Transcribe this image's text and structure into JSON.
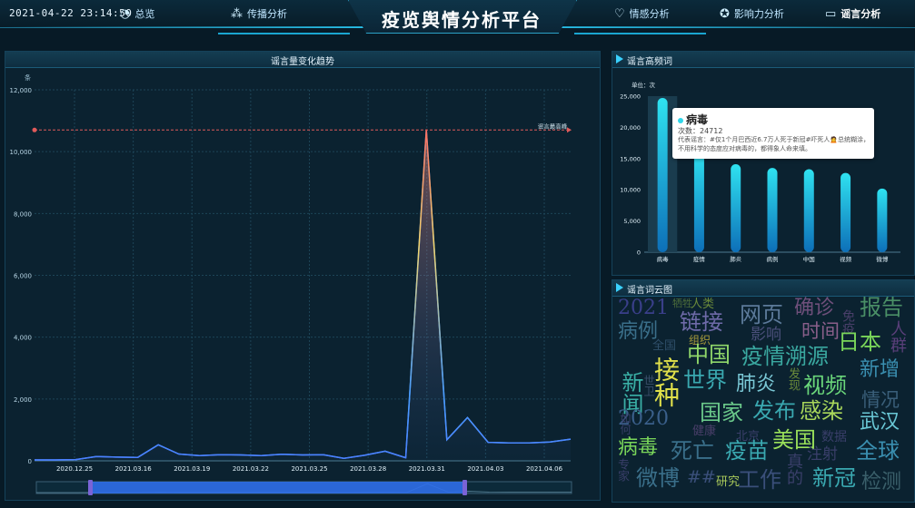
{
  "header": {
    "datetime": "2021-04-22 23:14:50",
    "title": "疫览舆情分析平台",
    "nav": [
      {
        "label": "总览",
        "icon": "gauge-icon"
      },
      {
        "label": "传播分析",
        "icon": "network-icon"
      },
      {
        "label": "情感分析",
        "icon": "heart-icon"
      },
      {
        "label": "影响力分析",
        "icon": "star-icon"
      },
      {
        "label": "谣言分析",
        "icon": "chat-icon"
      }
    ]
  },
  "trend": {
    "panel_title": "谣言量变化趋势",
    "markline_label": "谣言最高峰",
    "chart_data": {
      "type": "line",
      "title": "谣言量变化趋势",
      "ylabel": "条",
      "ylim": [
        0,
        12000
      ],
      "yticks": [
        "0",
        "2,000",
        "4,000",
        "6,000",
        "8,000",
        "10,000",
        "12,000"
      ],
      "x_tick_labels": [
        "2020.12.25",
        "2021.03.16",
        "2021.03.19",
        "2021.03.22",
        "2021.03.25",
        "2021.03.28",
        "2021.03.31",
        "2021.04.03",
        "2021.04.06"
      ],
      "series": [
        {
          "name": "谣言量",
          "values": [
            30,
            30,
            40,
            140,
            120,
            110,
            520,
            220,
            170,
            200,
            190,
            170,
            210,
            190,
            200,
            80,
            180,
            310,
            100,
            10700,
            680,
            1400,
            600,
            580,
            580,
            610,
            700
          ]
        }
      ],
      "max_line": 10700
    }
  },
  "keywords": {
    "panel_title": "谣言高频词",
    "unit_label": "单位：次",
    "chart_data": {
      "type": "bar",
      "categories": [
        "病毒",
        "疫情",
        "肺炎",
        "病例",
        "中国",
        "视频",
        "微博"
      ],
      "values": [
        24712,
        16300,
        14100,
        13500,
        13300,
        12700,
        10200
      ],
      "ylim": [
        0,
        25000
      ],
      "yticks": [
        "0",
        "5,000",
        "10,000",
        "15,000",
        "20,000",
        "25,000"
      ]
    },
    "tooltip": {
      "name": "病毒",
      "count": "次数：24712",
      "representative": "代表谣言：#仅1个月巴西近6.7万人死于新冠#吓死人🙍总统糊涂，不用科学的态度应对病毒的，都得象人命来填。"
    }
  },
  "wordcloud": {
    "panel_title": "谣言词云图",
    "words": [
      {
        "text": "2021",
        "color": "#3a3f8a"
      },
      {
        "text": "牺牲",
        "color": "#4a6a3a"
      },
      {
        "text": "人类",
        "color": "#6b8a3a"
      },
      {
        "text": "确诊",
        "color": "#6e4f7a"
      },
      {
        "text": "报告",
        "color": "#4a8f66"
      },
      {
        "text": "病例",
        "color": "#3a6f8a"
      },
      {
        "text": "链接",
        "color": "#6e6aa8"
      },
      {
        "text": "网页",
        "color": "#5c7a9a"
      },
      {
        "text": "影响",
        "color": "#4a4f7a"
      },
      {
        "text": "时间",
        "color": "#8a5f8a"
      },
      {
        "text": "免疫",
        "color": "#4a3f6a"
      },
      {
        "text": "人群",
        "color": "#5a3f7a"
      },
      {
        "text": "组织",
        "color": "#a89a3a"
      },
      {
        "text": "全国",
        "color": "#2f4f6a"
      },
      {
        "text": "中国",
        "color": "#8fd66a"
      },
      {
        "text": "疫情溯源",
        "color": "#3aa8a0"
      },
      {
        "text": "日本",
        "color": "#7ad65a"
      },
      {
        "text": "新闻",
        "color": "#3ab0a6"
      },
      {
        "text": "接种",
        "color": "#e0e04a"
      },
      {
        "text": "世卫",
        "color": "#3a4f6a"
      },
      {
        "text": "世界",
        "color": "#3aa8b0"
      },
      {
        "text": "发现",
        "color": "#6a8a3a"
      },
      {
        "text": "肺炎",
        "color": "#7ac8d6"
      },
      {
        "text": "视频",
        "color": "#6ad67a"
      },
      {
        "text": "新增",
        "color": "#3a8fb0"
      },
      {
        "text": "情况",
        "color": "#3a5f7a"
      },
      {
        "text": "国家",
        "color": "#6ac88a"
      },
      {
        "text": "发布",
        "color": "#3aa8b0"
      },
      {
        "text": "感染",
        "color": "#a8d65a"
      },
      {
        "text": "武汉",
        "color": "#6ac8d6"
      },
      {
        "text": "2020",
        "color": "#3a5f8a"
      },
      {
        "text": "健康",
        "color": "#4a3f6a"
      },
      {
        "text": "北京",
        "color": "#3a3f6a"
      },
      {
        "text": "数据",
        "color": "#3a3f6a"
      },
      {
        "text": "病毒",
        "color": "#7ad65a"
      },
      {
        "text": "死亡",
        "color": "#3a6f8a"
      },
      {
        "text": "疫苗",
        "color": "#3aa8b0"
      },
      {
        "text": "美国",
        "color": "#9ae05a"
      },
      {
        "text": "注射",
        "color": "#3a3f6a"
      },
      {
        "text": "全球",
        "color": "#3a8fb0"
      },
      {
        "text": "微博",
        "color": "#3a6f8a"
      },
      {
        "text": "##",
        "color": "#3a4f7a"
      },
      {
        "text": "研究",
        "color": "#a8c85a"
      },
      {
        "text": "工作",
        "color": "#3a4f7a"
      },
      {
        "text": "真的",
        "color": "#3a3f6a"
      },
      {
        "text": "新冠",
        "color": "#3aa8b0"
      },
      {
        "text": "检测",
        "color": "#3a5f6a"
      },
      {
        "text": "专家",
        "color": "#3a3f6a"
      },
      {
        "text": "如何",
        "color": "#3a3f6a"
      }
    ]
  }
}
